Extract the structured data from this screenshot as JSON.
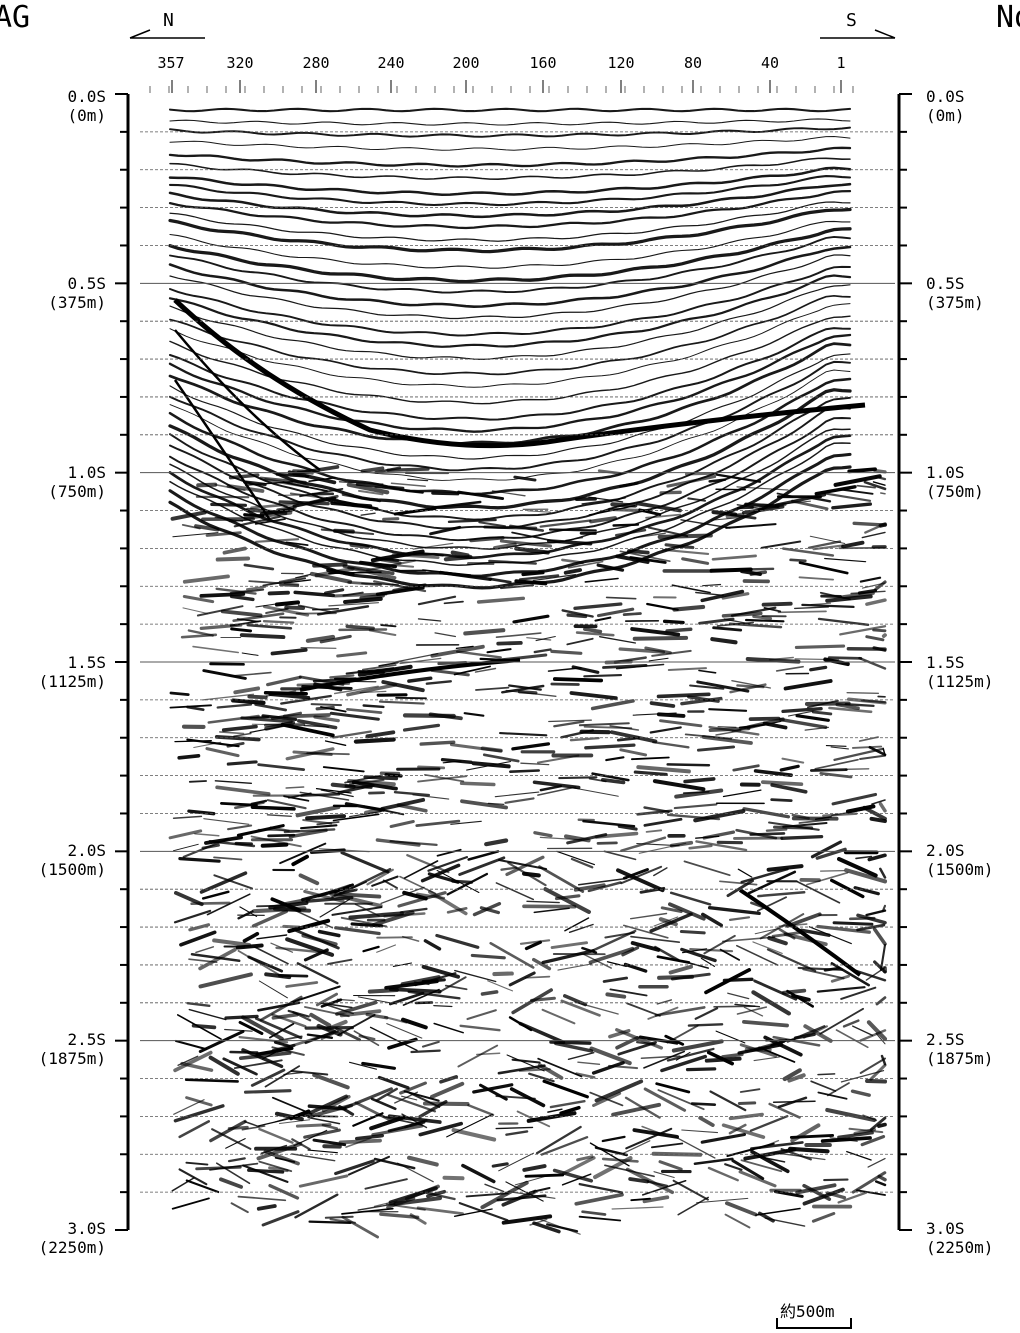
{
  "header": {
    "corner_left": "AG",
    "corner_right": "No",
    "direction_left": "N",
    "direction_right": "S"
  },
  "trace_axis": {
    "ticks": [
      "357",
      "320",
      "280",
      "240",
      "200",
      "160",
      "120",
      "80",
      "40",
      "1"
    ]
  },
  "time_axis": {
    "ticks": [
      {
        "time": "0.0S",
        "depth": "(0m)"
      },
      {
        "time": "0.5S",
        "depth": "(375m)"
      },
      {
        "time": "1.0S",
        "depth": "(750m)"
      },
      {
        "time": "1.5S",
        "depth": "(1125m)"
      },
      {
        "time": "2.0S",
        "depth": "(1500m)"
      },
      {
        "time": "2.5S",
        "depth": "(1875m)"
      },
      {
        "time": "3.0S",
        "depth": "(2250m)"
      }
    ]
  },
  "scale_bar": {
    "label": "約500m"
  },
  "colors": {
    "ink": "#000000",
    "grid": "#555555",
    "background": "#ffffff"
  }
}
